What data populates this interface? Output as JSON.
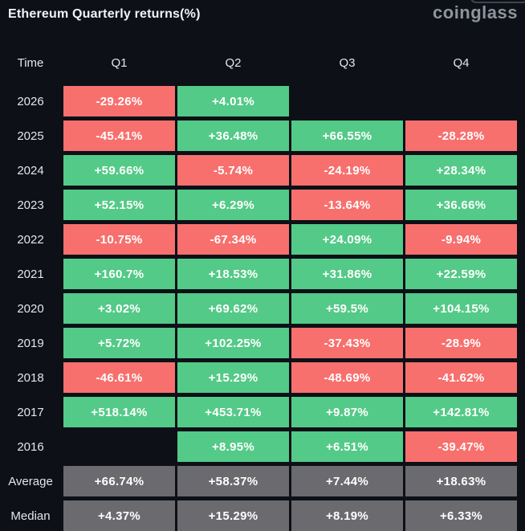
{
  "header": {
    "title": "Ethereum Quarterly returns(%)",
    "logo": "coinglass"
  },
  "colors": {
    "positive": "#53ca87",
    "negative": "#f7706d",
    "neutral": "#6a6a6f",
    "background": "#0d1017"
  },
  "table": {
    "columns": [
      "Time",
      "Q1",
      "Q2",
      "Q3",
      "Q4"
    ],
    "rows": [
      {
        "label": "2026",
        "cells": [
          {
            "v": "-29.26%",
            "s": "neg"
          },
          {
            "v": "+4.01%",
            "s": "pos"
          },
          {
            "v": "",
            "s": "empty"
          },
          {
            "v": "",
            "s": "empty"
          }
        ]
      },
      {
        "label": "2025",
        "cells": [
          {
            "v": "-45.41%",
            "s": "neg"
          },
          {
            "v": "+36.48%",
            "s": "pos"
          },
          {
            "v": "+66.55%",
            "s": "pos"
          },
          {
            "v": "-28.28%",
            "s": "neg"
          }
        ]
      },
      {
        "label": "2024",
        "cells": [
          {
            "v": "+59.66%",
            "s": "pos"
          },
          {
            "v": "-5.74%",
            "s": "neg"
          },
          {
            "v": "-24.19%",
            "s": "neg"
          },
          {
            "v": "+28.34%",
            "s": "pos"
          }
        ]
      },
      {
        "label": "2023",
        "cells": [
          {
            "v": "+52.15%",
            "s": "pos"
          },
          {
            "v": "+6.29%",
            "s": "pos"
          },
          {
            "v": "-13.64%",
            "s": "neg"
          },
          {
            "v": "+36.66%",
            "s": "pos"
          }
        ]
      },
      {
        "label": "2022",
        "cells": [
          {
            "v": "-10.75%",
            "s": "neg"
          },
          {
            "v": "-67.34%",
            "s": "neg"
          },
          {
            "v": "+24.09%",
            "s": "pos"
          },
          {
            "v": "-9.94%",
            "s": "neg"
          }
        ]
      },
      {
        "label": "2021",
        "cells": [
          {
            "v": "+160.7%",
            "s": "pos"
          },
          {
            "v": "+18.53%",
            "s": "pos"
          },
          {
            "v": "+31.86%",
            "s": "pos"
          },
          {
            "v": "+22.59%",
            "s": "pos"
          }
        ]
      },
      {
        "label": "2020",
        "cells": [
          {
            "v": "+3.02%",
            "s": "pos"
          },
          {
            "v": "+69.62%",
            "s": "pos"
          },
          {
            "v": "+59.5%",
            "s": "pos"
          },
          {
            "v": "+104.15%",
            "s": "pos"
          }
        ]
      },
      {
        "label": "2019",
        "cells": [
          {
            "v": "+5.72%",
            "s": "pos"
          },
          {
            "v": "+102.25%",
            "s": "pos"
          },
          {
            "v": "-37.43%",
            "s": "neg"
          },
          {
            "v": "-28.9%",
            "s": "neg"
          }
        ]
      },
      {
        "label": "2018",
        "cells": [
          {
            "v": "-46.61%",
            "s": "neg"
          },
          {
            "v": "+15.29%",
            "s": "pos"
          },
          {
            "v": "-48.69%",
            "s": "neg"
          },
          {
            "v": "-41.62%",
            "s": "neg"
          }
        ]
      },
      {
        "label": "2017",
        "cells": [
          {
            "v": "+518.14%",
            "s": "pos"
          },
          {
            "v": "+453.71%",
            "s": "pos"
          },
          {
            "v": "+9.87%",
            "s": "pos"
          },
          {
            "v": "+142.81%",
            "s": "pos"
          }
        ]
      },
      {
        "label": "2016",
        "cells": [
          {
            "v": "",
            "s": "empty"
          },
          {
            "v": "+8.95%",
            "s": "pos"
          },
          {
            "v": "+6.51%",
            "s": "pos"
          },
          {
            "v": "-39.47%",
            "s": "neg"
          }
        ]
      },
      {
        "label": "Average",
        "cells": [
          {
            "v": "+66.74%",
            "s": "avg"
          },
          {
            "v": "+58.37%",
            "s": "avg"
          },
          {
            "v": "+7.44%",
            "s": "avg"
          },
          {
            "v": "+18.63%",
            "s": "avg"
          }
        ]
      },
      {
        "label": "Median",
        "cells": [
          {
            "v": "+4.37%",
            "s": "avg"
          },
          {
            "v": "+15.29%",
            "s": "avg"
          },
          {
            "v": "+8.19%",
            "s": "avg"
          },
          {
            "v": "+6.33%",
            "s": "avg"
          }
        ]
      }
    ]
  },
  "chart_data": {
    "type": "table",
    "title": "Ethereum Quarterly returns(%)",
    "columns": [
      "Q1",
      "Q2",
      "Q3",
      "Q4"
    ],
    "rows": [
      "2026",
      "2025",
      "2024",
      "2023",
      "2022",
      "2021",
      "2020",
      "2019",
      "2018",
      "2017",
      "2016",
      "Average",
      "Median"
    ],
    "values_pct": [
      [
        -29.26,
        4.01,
        null,
        null
      ],
      [
        -45.41,
        36.48,
        66.55,
        -28.28
      ],
      [
        59.66,
        -5.74,
        -24.19,
        28.34
      ],
      [
        52.15,
        6.29,
        -13.64,
        36.66
      ],
      [
        -10.75,
        -67.34,
        24.09,
        -9.94
      ],
      [
        160.7,
        18.53,
        31.86,
        22.59
      ],
      [
        3.02,
        69.62,
        59.5,
        104.15
      ],
      [
        5.72,
        102.25,
        -37.43,
        -28.9
      ],
      [
        -46.61,
        15.29,
        -48.69,
        -41.62
      ],
      [
        518.14,
        453.71,
        9.87,
        142.81
      ],
      [
        null,
        8.95,
        6.51,
        -39.47
      ],
      [
        66.74,
        58.37,
        7.44,
        18.63
      ],
      [
        4.37,
        15.29,
        8.19,
        6.33
      ]
    ],
    "legend_position": "none",
    "grid": false
  }
}
